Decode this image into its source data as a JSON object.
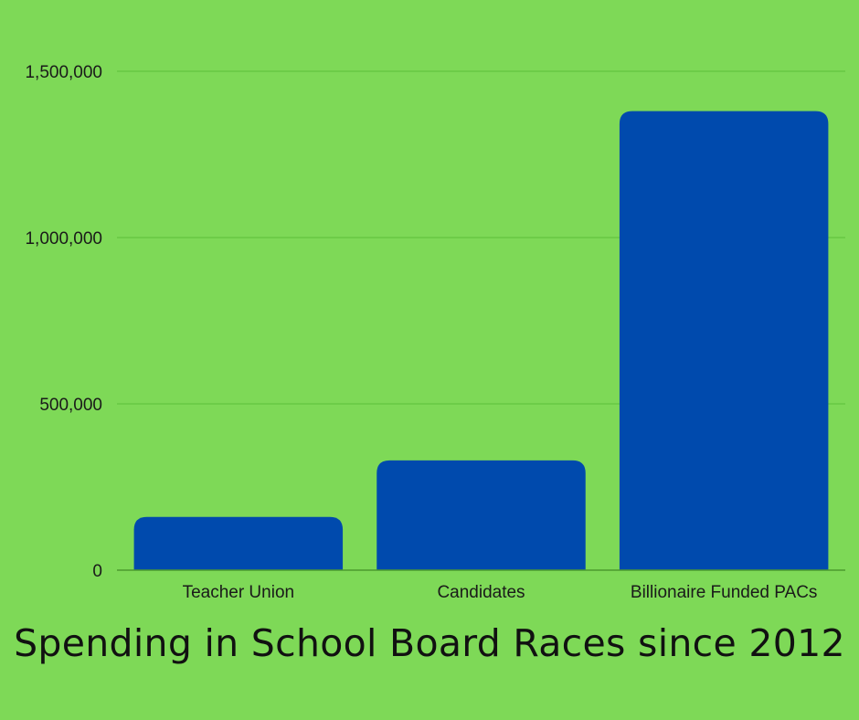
{
  "chart_data": {
    "type": "bar",
    "title": "Spending in School Board Races since 2012",
    "xlabel": "",
    "ylabel": "",
    "categories": [
      "Teacher Union",
      "Candidates",
      "Billionaire Funded PACs"
    ],
    "values": [
      160000,
      330000,
      1380000
    ],
    "ylim": [
      0,
      1500000
    ],
    "yticks": [
      0,
      500000,
      1000000,
      1500000
    ],
    "ytick_labels": [
      "0",
      "500,000",
      "1,000,000",
      "1,500,000"
    ],
    "grid": "horizontal",
    "legend": "none",
    "colors": {
      "background": "#7ed957",
      "bar": "#004aad",
      "grid": "#5cbf3a",
      "axis": "#4c9a2f",
      "text": "#1a1a1a"
    }
  }
}
